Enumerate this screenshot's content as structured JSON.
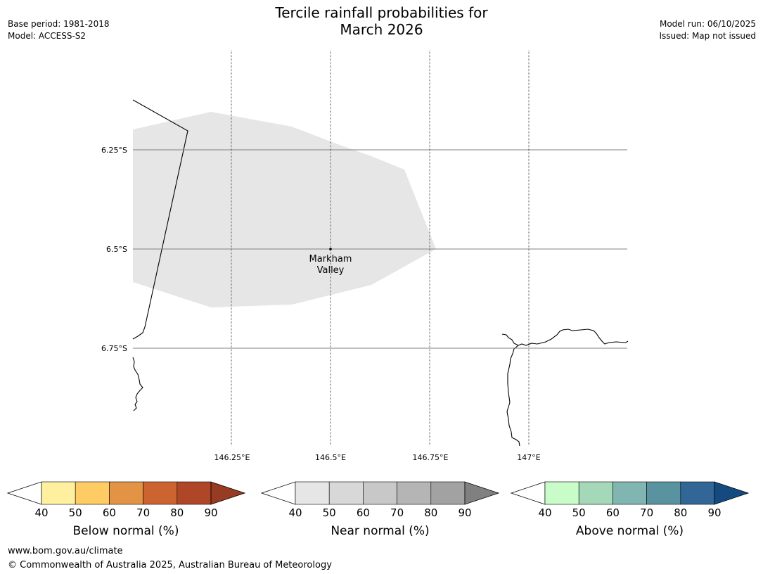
{
  "header": {
    "title_line1": "Tercile rainfall probabilities for",
    "title_line2": "March 2026",
    "base_period": "Base period: 1981-2018",
    "model": "Model: ACCESS-S2",
    "model_run": "Model run: 06/10/2025",
    "issued": "Issued: Map not issued"
  },
  "map": {
    "lat_labels": [
      "6.25°S",
      "6.5°S",
      "6.75°S"
    ],
    "lon_labels": [
      "146.25°E",
      "146.5°E",
      "146.75°E",
      "147°E"
    ],
    "place_name_line1": "Markham",
    "place_name_line2": "Valley",
    "shaded_category": "Near normal",
    "shade_color": "#e6e6e6"
  },
  "colorbars": [
    {
      "title": "Below normal (%)",
      "ticks": [
        "40",
        "50",
        "60",
        "70",
        "80",
        "90"
      ],
      "colors": [
        "#fff0a0",
        "#fecb65",
        "#e39344",
        "#cc6432",
        "#af4627"
      ],
      "over_color": "#973b22"
    },
    {
      "title": "Near normal (%)",
      "ticks": [
        "40",
        "50",
        "60",
        "70",
        "80",
        "90"
      ],
      "colors": [
        "#e6e6e6",
        "#d8d8d8",
        "#c8c8c8",
        "#b5b5b5",
        "#a2a2a2"
      ],
      "over_color": "#808080"
    },
    {
      "title": "Above normal (%)",
      "ticks": [
        "40",
        "50",
        "60",
        "70",
        "80",
        "90"
      ],
      "colors": [
        "#c8fcc8",
        "#a4d8b9",
        "#80b5b1",
        "#5a93a0",
        "#316697"
      ],
      "over_color": "#154a80"
    }
  ],
  "footer": {
    "url": "www.bom.gov.au/climate",
    "copyright": "© Commonwealth of Australia 2025, Australian Bureau of Meteorology"
  }
}
